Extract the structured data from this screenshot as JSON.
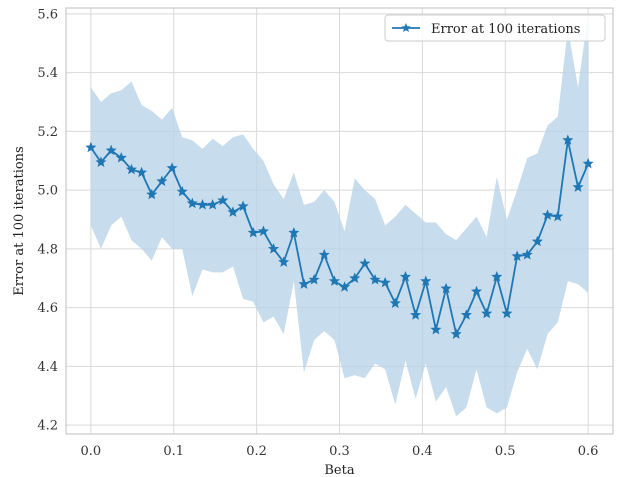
{
  "chart_data": {
    "type": "line",
    "title": "",
    "xlabel": "Beta",
    "ylabel": "Error at 100 iterations",
    "xlim": [
      -0.03,
      0.63
    ],
    "ylim": [
      4.17,
      5.62
    ],
    "xticks": [
      0.0,
      0.1,
      0.2,
      0.3,
      0.4,
      0.5,
      0.6
    ],
    "xtick_labels": [
      "0.0",
      "0.1",
      "0.2",
      "0.3",
      "0.4",
      "0.5",
      "0.6"
    ],
    "yticks": [
      4.2,
      4.4,
      4.6,
      4.8,
      5.0,
      5.2,
      5.4,
      5.6
    ],
    "ytick_labels": [
      "4.2",
      "4.4",
      "4.6",
      "4.8",
      "5.0",
      "5.2",
      "5.4",
      "5.6"
    ],
    "grid": true,
    "legend": "top-right",
    "colors": {
      "line": "#1f77b4",
      "band": "#b9d3e8",
      "grid": "#d9d9d9",
      "frame": "#bfbfbf"
    },
    "series": [
      {
        "name": "Error at 100 iterations",
        "marker": "star",
        "x": [
          0.0,
          0.0122,
          0.0245,
          0.0367,
          0.049,
          0.0612,
          0.0735,
          0.0857,
          0.098,
          0.1102,
          0.1224,
          0.1347,
          0.1469,
          0.1592,
          0.1714,
          0.1837,
          0.1959,
          0.2082,
          0.2204,
          0.2327,
          0.2449,
          0.2571,
          0.2694,
          0.2816,
          0.2939,
          0.3061,
          0.3184,
          0.3306,
          0.3429,
          0.3551,
          0.3673,
          0.3796,
          0.3918,
          0.4041,
          0.4163,
          0.4286,
          0.4408,
          0.4531,
          0.4653,
          0.4776,
          0.4898,
          0.502,
          0.5143,
          0.5265,
          0.5388,
          0.551,
          0.5633,
          0.5755,
          0.5878,
          0.6
        ],
        "y": [
          5.145,
          5.095,
          5.135,
          5.11,
          5.07,
          5.06,
          4.985,
          5.03,
          5.075,
          4.995,
          4.955,
          4.95,
          4.95,
          4.965,
          4.925,
          4.945,
          4.855,
          4.86,
          4.8,
          4.755,
          4.855,
          4.68,
          4.695,
          4.78,
          4.69,
          4.67,
          4.7,
          4.75,
          4.695,
          4.685,
          4.615,
          4.705,
          4.575,
          4.69,
          4.525,
          4.665,
          4.51,
          4.575,
          4.655,
          4.58,
          4.705,
          4.58,
          4.775,
          4.78,
          4.825,
          4.915,
          4.91,
          5.17,
          5.01,
          5.09
        ],
        "upper": [
          5.35,
          5.3,
          5.33,
          5.34,
          5.37,
          5.29,
          5.27,
          5.24,
          5.28,
          5.18,
          5.17,
          5.14,
          5.175,
          5.15,
          5.18,
          5.19,
          5.14,
          5.1,
          5.02,
          4.97,
          5.06,
          4.95,
          4.96,
          5.0,
          4.96,
          4.86,
          5.04,
          5.0,
          4.97,
          4.88,
          4.91,
          4.95,
          4.92,
          4.89,
          4.89,
          4.85,
          4.83,
          4.87,
          4.91,
          4.84,
          5.045,
          4.9,
          5.0,
          5.11,
          5.125,
          5.22,
          5.25,
          5.55,
          5.35,
          5.6
        ],
        "lower": [
          4.88,
          4.8,
          4.88,
          4.91,
          4.83,
          4.8,
          4.76,
          4.84,
          4.8,
          4.8,
          4.64,
          4.73,
          4.72,
          4.72,
          4.74,
          4.63,
          4.62,
          4.55,
          4.57,
          4.51,
          4.69,
          4.38,
          4.49,
          4.52,
          4.49,
          4.36,
          4.37,
          4.36,
          4.41,
          4.39,
          4.27,
          4.42,
          4.29,
          4.41,
          4.28,
          4.33,
          4.23,
          4.26,
          4.39,
          4.26,
          4.24,
          4.26,
          4.38,
          4.46,
          4.39,
          4.51,
          4.55,
          4.69,
          4.68,
          4.65
        ]
      }
    ]
  }
}
